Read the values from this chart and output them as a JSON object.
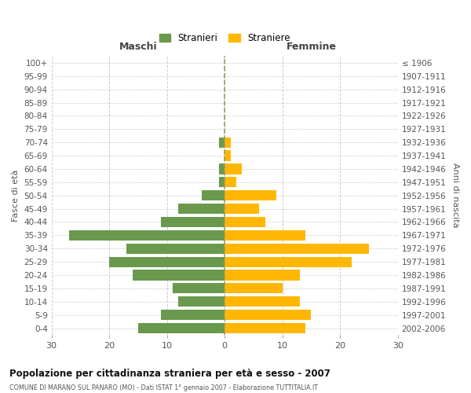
{
  "age_groups": [
    "0-4",
    "5-9",
    "10-14",
    "15-19",
    "20-24",
    "25-29",
    "30-34",
    "35-39",
    "40-44",
    "45-49",
    "50-54",
    "55-59",
    "60-64",
    "65-69",
    "70-74",
    "75-79",
    "80-84",
    "85-89",
    "90-94",
    "95-99",
    "100+"
  ],
  "birth_years": [
    "2002-2006",
    "1997-2001",
    "1992-1996",
    "1987-1991",
    "1982-1986",
    "1977-1981",
    "1972-1976",
    "1967-1971",
    "1962-1966",
    "1957-1961",
    "1952-1956",
    "1947-1951",
    "1942-1946",
    "1937-1941",
    "1932-1936",
    "1927-1931",
    "1922-1926",
    "1917-1921",
    "1912-1916",
    "1907-1911",
    "≤ 1906"
  ],
  "maschi": [
    15,
    11,
    8,
    9,
    16,
    20,
    17,
    27,
    11,
    8,
    4,
    1,
    1,
    0,
    1,
    0,
    0,
    0,
    0,
    0,
    0
  ],
  "femmine": [
    14,
    15,
    13,
    10,
    13,
    22,
    25,
    14,
    7,
    6,
    9,
    2,
    3,
    1,
    1,
    0,
    0,
    0,
    0,
    0,
    0
  ],
  "maschi_color": "#6a994e",
  "femmine_color": "#ffb703",
  "background_color": "#ffffff",
  "grid_color": "#cccccc",
  "title": "Popolazione per cittadinanza straniera per età e sesso - 2007",
  "subtitle": "COMUNE DI MARANO SUL PANARO (MO) - Dati ISTAT 1° gennaio 2007 - Elaborazione TUTTITALIA.IT",
  "xlabel_left": "Maschi",
  "xlabel_right": "Femmine",
  "ylabel_left": "Fasce di età",
  "ylabel_right": "Anni di nascita",
  "legend_maschi": "Stranieri",
  "legend_femmine": "Straniere",
  "xlim": 30
}
